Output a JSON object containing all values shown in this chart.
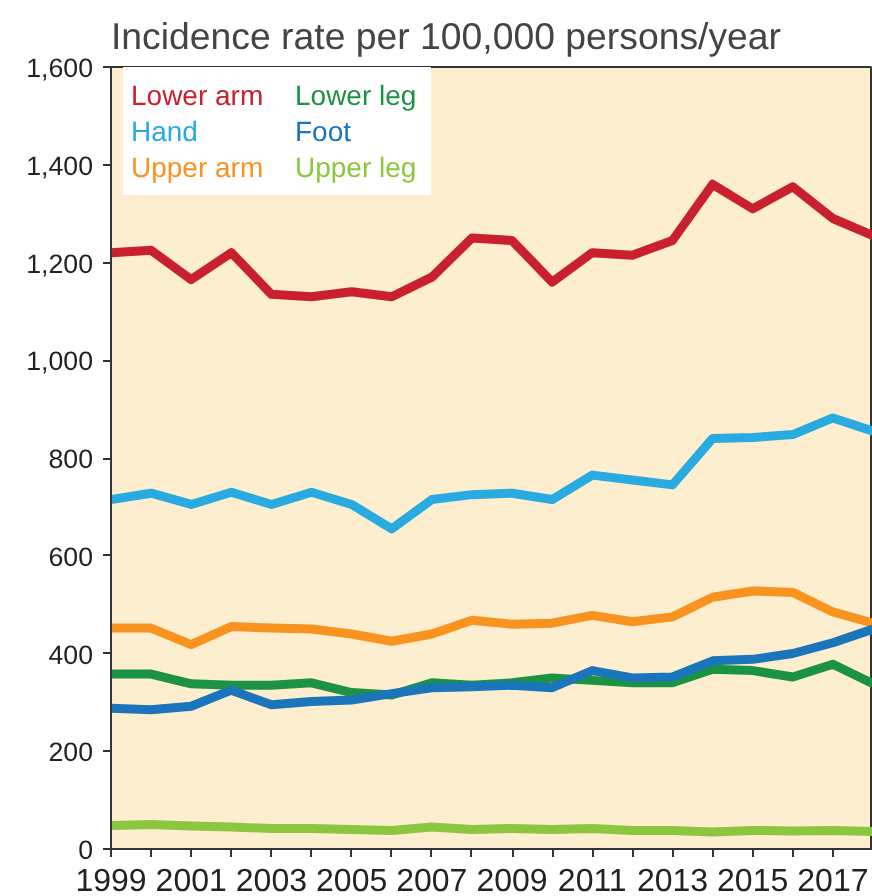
{
  "chart_data": {
    "type": "line",
    "title": "Incidence rate per 100,000 persons/year",
    "x": [
      1999,
      2000,
      2001,
      2002,
      2003,
      2004,
      2005,
      2006,
      2007,
      2008,
      2009,
      2010,
      2011,
      2012,
      2013,
      2014,
      2015,
      2016,
      2017,
      2018
    ],
    "series": [
      {
        "name": "Lower arm",
        "color": "#c8202f",
        "values": [
          1220,
          1225,
          1165,
          1220,
          1135,
          1130,
          1140,
          1130,
          1170,
          1250,
          1245,
          1160,
          1220,
          1215,
          1245,
          1360,
          1310,
          1355,
          1290,
          1255
        ]
      },
      {
        "name": "Hand",
        "color": "#29abe2",
        "values": [
          715,
          728,
          705,
          730,
          705,
          730,
          705,
          655,
          715,
          725,
          728,
          715,
          765,
          755,
          745,
          840,
          842,
          848,
          882,
          855
        ]
      },
      {
        "name": "Upper arm",
        "color": "#f7931e",
        "values": [
          452,
          452,
          418,
          455,
          452,
          450,
          440,
          425,
          440,
          468,
          460,
          462,
          478,
          465,
          475,
          515,
          528,
          525,
          485,
          462
        ]
      },
      {
        "name": "Lower leg",
        "color": "#1b9343",
        "values": [
          358,
          358,
          338,
          335,
          335,
          340,
          320,
          315,
          340,
          335,
          340,
          350,
          345,
          340,
          340,
          368,
          365,
          352,
          378,
          338
        ]
      },
      {
        "name": "Foot",
        "color": "#1b75bb",
        "values": [
          288,
          285,
          292,
          325,
          295,
          302,
          305,
          318,
          330,
          332,
          335,
          330,
          365,
          350,
          352,
          385,
          388,
          400,
          422,
          450
        ]
      },
      {
        "name": "Upper leg",
        "color": "#8cc63f",
        "values": [
          48,
          50,
          47,
          45,
          42,
          42,
          40,
          38,
          45,
          40,
          42,
          40,
          42,
          38,
          38,
          35,
          38,
          37,
          38,
          36
        ]
      }
    ],
    "xlim": [
      1999,
      2018
    ],
    "xticks": [
      1999,
      {
        "value": 2000,
        "label": null
      },
      2001,
      {
        "value": 2002,
        "label": null
      },
      2003,
      {
        "value": 2004,
        "label": null
      },
      2005,
      {
        "value": 2006,
        "label": null
      },
      2007,
      {
        "value": 2008,
        "label": null
      },
      2009,
      {
        "value": 2010,
        "label": null
      },
      2011,
      {
        "value": 2012,
        "label": null
      },
      2013,
      {
        "value": 2014,
        "label": null
      },
      2015,
      {
        "value": 2016,
        "label": null
      },
      2017,
      {
        "value": 2018,
        "label": null
      }
    ],
    "ylim": [
      0,
      1600
    ],
    "yticks": [
      0,
      {
        "value": 200,
        "label": "200"
      },
      {
        "value": 400,
        "label": "400"
      },
      {
        "value": 600,
        "label": "600"
      },
      {
        "value": 800,
        "label": "800"
      },
      {
        "value": 1000,
        "label": "1,000"
      },
      {
        "value": 1200,
        "label": "1,200"
      },
      {
        "value": 1400,
        "label": "1,400"
      },
      {
        "value": 1600,
        "label": "1,600"
      }
    ],
    "grid": false,
    "legend": "top left",
    "marker": "none",
    "line_style": "solid"
  }
}
